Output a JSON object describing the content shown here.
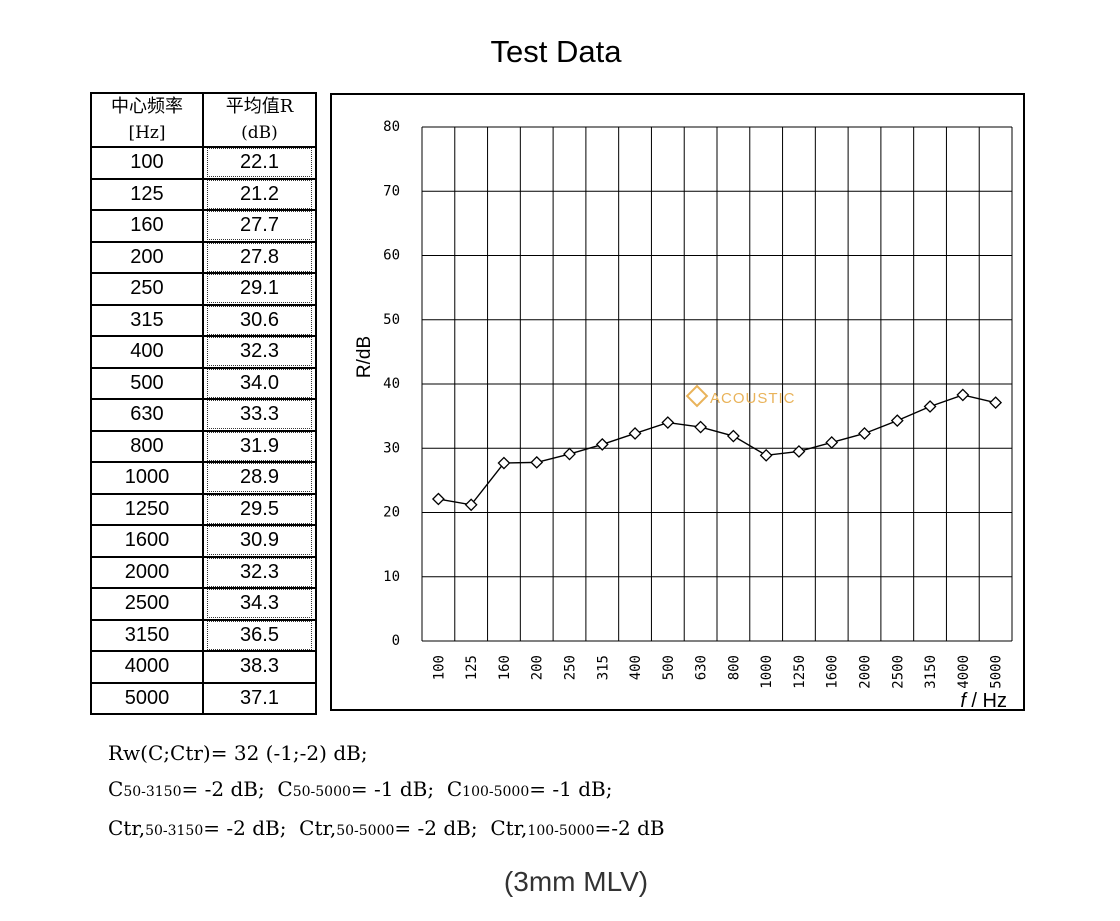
{
  "title": "Test Data",
  "table": {
    "header_freq_line1": "中心频率",
    "header_freq_line2": "[Hz]",
    "header_val_line1": "平均值R",
    "header_val_line2": "(dB)",
    "rows": [
      {
        "freq": "100",
        "value": "22.1"
      },
      {
        "freq": "125",
        "value": "21.2"
      },
      {
        "freq": "160",
        "value": "27.7"
      },
      {
        "freq": "200",
        "value": "27.8"
      },
      {
        "freq": "250",
        "value": "29.1"
      },
      {
        "freq": "315",
        "value": "30.6"
      },
      {
        "freq": "400",
        "value": "32.3"
      },
      {
        "freq": "500",
        "value": "34.0"
      },
      {
        "freq": "630",
        "value": "33.3"
      },
      {
        "freq": "800",
        "value": "31.9"
      },
      {
        "freq": "1000",
        "value": "28.9"
      },
      {
        "freq": "1250",
        "value": "29.5"
      },
      {
        "freq": "1600",
        "value": "30.9"
      },
      {
        "freq": "2000",
        "value": "32.3"
      },
      {
        "freq": "2500",
        "value": "34.3"
      },
      {
        "freq": "3150",
        "value": "36.5"
      },
      {
        "freq": "4000",
        "value": "38.3"
      },
      {
        "freq": "5000",
        "value": "37.1"
      }
    ]
  },
  "chart_data": {
    "type": "line",
    "categories": [
      "100",
      "125",
      "160",
      "200",
      "250",
      "315",
      "400",
      "500",
      "630",
      "800",
      "1000",
      "1250",
      "1600",
      "2000",
      "2500",
      "3150",
      "4000",
      "5000"
    ],
    "series": [
      {
        "values": [
          22.1,
          21.2,
          27.7,
          27.8,
          29.1,
          30.6,
          32.3,
          34.0,
          33.3,
          31.9,
          28.9,
          29.5,
          30.9,
          32.3,
          34.3,
          36.5,
          38.3,
          37.1
        ]
      }
    ],
    "ylabel": "R/dB",
    "xlabel": "f / Hz",
    "xlabel_italic": "f",
    "xlabel_rest": " / Hz",
    "ylim": [
      0,
      80
    ],
    "yticks": [
      0,
      10,
      20,
      30,
      40,
      50,
      60,
      70,
      80
    ],
    "grid": true,
    "marker": "diamond",
    "watermark": "ACOUSTIC",
    "line_color": "#000000"
  },
  "formula": {
    "line1": "Rw(C;Ctr)= 32 (-1;-2) dB;",
    "l2_a": "C",
    "l2_a_sub": "50-3150",
    "l2_a_val": "= -2 dB;",
    "l2_b": "C",
    "l2_b_sub": "50-5000",
    "l2_b_val": "= -1 dB;",
    "l2_c": "C",
    "l2_c_sub": "100-5000",
    "l2_c_val": "= -1 dB;",
    "l3_a": "Ctr,",
    "l3_a_sub": "50-3150",
    "l3_a_val": "= -2 dB;",
    "l3_b": "Ctr,",
    "l3_b_sub": "50-5000",
    "l3_b_val": "= -2 dB;",
    "l3_c": "Ctr,",
    "l3_c_sub": "100-5000",
    "l3_c_val": "=-2 dB"
  },
  "caption": "(3mm MLV)"
}
